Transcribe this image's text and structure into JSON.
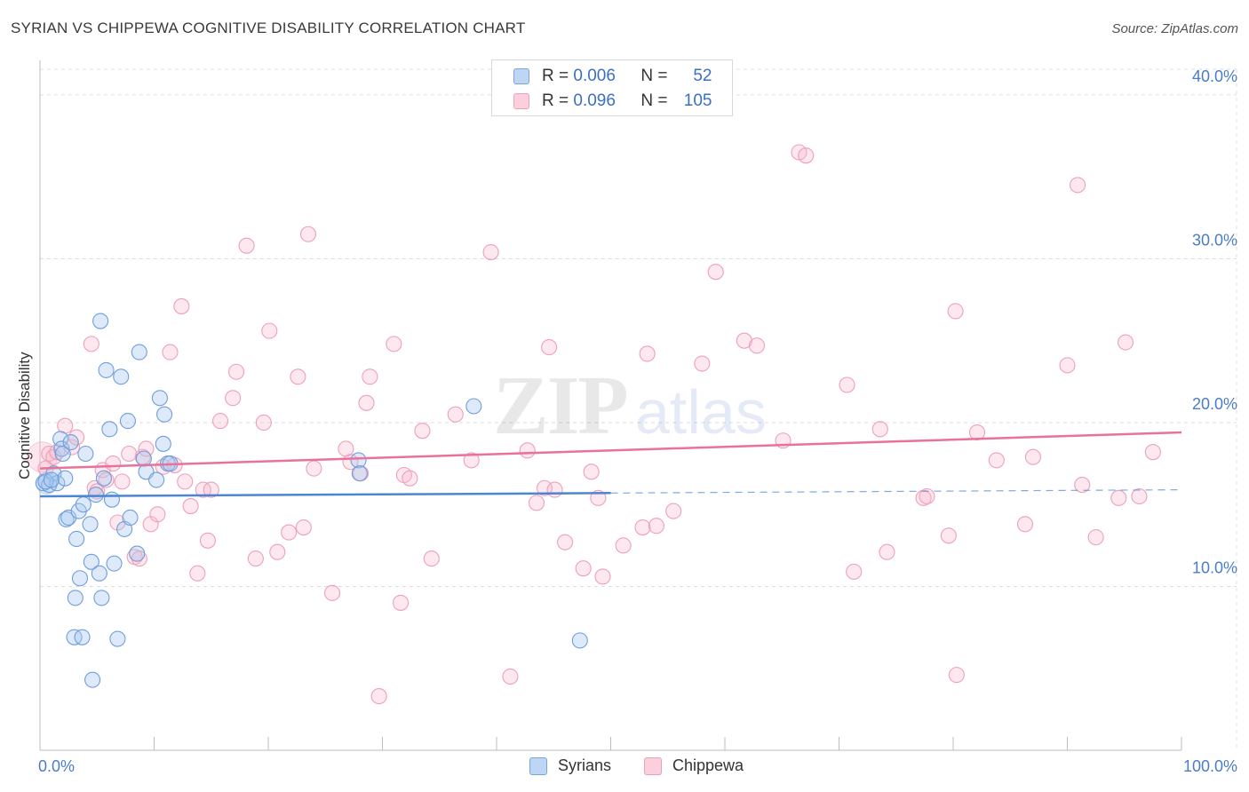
{
  "header": {
    "title": "SYRIAN VS CHIPPEWA COGNITIVE DISABILITY CORRELATION CHART",
    "source": "Source: ZipAtlas.com"
  },
  "legend": {
    "r_label": "R =",
    "n_label": "N =",
    "rows": [
      {
        "r": "0.006",
        "n": "52",
        "color": "#a8c8f0"
      },
      {
        "r": "0.096",
        "n": "105",
        "color": "#f8b8cc"
      }
    ]
  },
  "bottom_legend": [
    {
      "label": "Syrians",
      "color": "#a8c8f0"
    },
    {
      "label": "Chippewa",
      "color": "#f8b8cc"
    }
  ],
  "chart_data": {
    "type": "scatter",
    "title": "SYRIAN VS CHIPPEWA COGNITIVE DISABILITY CORRELATION CHART",
    "xlabel": "",
    "ylabel": "Cognitive Disability",
    "xlim": [
      0,
      100
    ],
    "ylim": [
      0,
      42
    ],
    "x_tick_labels": [
      "0.0%",
      "100.0%"
    ],
    "y_ticks": [
      10,
      20,
      30,
      40
    ],
    "y_tick_labels": [
      "10.0%",
      "20.0%",
      "30.0%",
      "40.0%"
    ],
    "grid": true,
    "watermark": "ZIPatlas",
    "colors": {
      "syrians": "#4a86d4",
      "chippewa": "#e8729a",
      "tick_label": "#4a7cc8"
    },
    "series": [
      {
        "name": "Syrians",
        "R": 0.006,
        "N": 52,
        "trend": {
          "x0": 0,
          "y0": 15.5,
          "x1": 50,
          "y1": 15.7,
          "dash_to": 100,
          "dash_y": 15.9
        },
        "points": [
          [
            0.3,
            16.3
          ],
          [
            0.8,
            16.2
          ],
          [
            1.2,
            16.9
          ],
          [
            1.5,
            16.3
          ],
          [
            1.8,
            19.0
          ],
          [
            1.9,
            18.4
          ],
          [
            2.0,
            18.1
          ],
          [
            2.2,
            16.6
          ],
          [
            2.3,
            14.1
          ],
          [
            2.5,
            14.2
          ],
          [
            2.7,
            18.8
          ],
          [
            3.0,
            6.9
          ],
          [
            3.1,
            9.3
          ],
          [
            3.2,
            12.9
          ],
          [
            3.4,
            14.6
          ],
          [
            3.5,
            10.5
          ],
          [
            3.7,
            6.9
          ],
          [
            3.8,
            15.0
          ],
          [
            4.0,
            18.1
          ],
          [
            4.4,
            13.8
          ],
          [
            4.5,
            11.5
          ],
          [
            4.6,
            4.3
          ],
          [
            4.9,
            15.6
          ],
          [
            5.2,
            10.8
          ],
          [
            5.3,
            26.2
          ],
          [
            5.4,
            9.3
          ],
          [
            5.6,
            16.6
          ],
          [
            5.8,
            23.2
          ],
          [
            6.1,
            19.6
          ],
          [
            6.3,
            15.3
          ],
          [
            6.5,
            11.4
          ],
          [
            6.8,
            6.8
          ],
          [
            7.1,
            22.8
          ],
          [
            7.4,
            13.5
          ],
          [
            7.7,
            20.1
          ],
          [
            7.9,
            14.2
          ],
          [
            8.5,
            12.0
          ],
          [
            8.7,
            24.3
          ],
          [
            9.1,
            17.8
          ],
          [
            9.3,
            17.0
          ],
          [
            10.2,
            16.5
          ],
          [
            10.5,
            21.5
          ],
          [
            10.8,
            18.7
          ],
          [
            10.9,
            20.5
          ],
          [
            11.2,
            17.5
          ],
          [
            11.4,
            17.5
          ],
          [
            27.9,
            17.7
          ],
          [
            28.0,
            16.9
          ],
          [
            38.0,
            21.0
          ],
          [
            47.3,
            6.7
          ],
          [
            0.5,
            16.4
          ],
          [
            1.0,
            16.5
          ]
        ]
      },
      {
        "name": "Chippewa",
        "R": 0.096,
        "N": 105,
        "trend": {
          "x0": 0,
          "y0": 17.2,
          "x1": 100,
          "y1": 19.4
        },
        "points": [
          [
            0.5,
            17.2
          ],
          [
            0.8,
            18.1
          ],
          [
            1.2,
            17.9
          ],
          [
            1.5,
            18.2
          ],
          [
            2.2,
            19.8
          ],
          [
            2.8,
            18.5
          ],
          [
            3.2,
            19.1
          ],
          [
            4.5,
            24.8
          ],
          [
            4.8,
            16.0
          ],
          [
            5.0,
            15.8
          ],
          [
            5.5,
            17.1
          ],
          [
            5.8,
            16.5
          ],
          [
            6.4,
            17.5
          ],
          [
            6.8,
            13.9
          ],
          [
            7.2,
            16.4
          ],
          [
            7.8,
            18.1
          ],
          [
            8.3,
            11.8
          ],
          [
            8.7,
            11.7
          ],
          [
            9.0,
            17.9
          ],
          [
            9.3,
            18.4
          ],
          [
            9.7,
            13.8
          ],
          [
            10.3,
            14.4
          ],
          [
            10.8,
            17.3
          ],
          [
            11.4,
            24.3
          ],
          [
            11.8,
            17.4
          ],
          [
            12.4,
            27.1
          ],
          [
            12.7,
            16.4
          ],
          [
            13.2,
            14.9
          ],
          [
            13.8,
            10.8
          ],
          [
            14.3,
            15.9
          ],
          [
            14.7,
            12.8
          ],
          [
            15.0,
            15.9
          ],
          [
            15.8,
            20.1
          ],
          [
            16.9,
            21.5
          ],
          [
            17.2,
            23.1
          ],
          [
            18.1,
            30.8
          ],
          [
            18.9,
            11.7
          ],
          [
            19.6,
            20.0
          ],
          [
            20.1,
            25.6
          ],
          [
            20.8,
            12.1
          ],
          [
            21.8,
            13.3
          ],
          [
            22.6,
            22.8
          ],
          [
            23.1,
            13.6
          ],
          [
            23.5,
            31.5
          ],
          [
            24.0,
            17.2
          ],
          [
            25.6,
            9.6
          ],
          [
            26.8,
            18.4
          ],
          [
            27.2,
            17.6
          ],
          [
            28.1,
            16.9
          ],
          [
            28.6,
            21.2
          ],
          [
            28.9,
            22.8
          ],
          [
            29.7,
            3.3
          ],
          [
            31.0,
            24.8
          ],
          [
            31.6,
            9.0
          ],
          [
            31.9,
            16.8
          ],
          [
            32.4,
            16.6
          ],
          [
            33.5,
            19.5
          ],
          [
            34.3,
            11.7
          ],
          [
            36.4,
            20.5
          ],
          [
            37.8,
            17.7
          ],
          [
            39.5,
            30.4
          ],
          [
            41.2,
            4.5
          ],
          [
            42.7,
            18.3
          ],
          [
            43.5,
            15.1
          ],
          [
            44.2,
            16.0
          ],
          [
            44.6,
            24.6
          ],
          [
            45.1,
            15.9
          ],
          [
            46.0,
            12.7
          ],
          [
            47.6,
            11.1
          ],
          [
            48.3,
            17.0
          ],
          [
            48.9,
            15.4
          ],
          [
            49.3,
            10.6
          ],
          [
            51.1,
            12.5
          ],
          [
            52.8,
            13.6
          ],
          [
            53.2,
            24.2
          ],
          [
            54.0,
            13.7
          ],
          [
            55.5,
            14.6
          ],
          [
            58.0,
            23.6
          ],
          [
            59.2,
            29.2
          ],
          [
            61.7,
            25.0
          ],
          [
            62.8,
            24.7
          ],
          [
            65.1,
            18.9
          ],
          [
            66.5,
            36.5
          ],
          [
            67.1,
            36.3
          ],
          [
            70.7,
            22.3
          ],
          [
            71.3,
            10.9
          ],
          [
            73.6,
            19.6
          ],
          [
            74.2,
            12.1
          ],
          [
            77.4,
            15.4
          ],
          [
            77.7,
            15.5
          ],
          [
            79.6,
            13.1
          ],
          [
            80.2,
            26.8
          ],
          [
            80.3,
            4.6
          ],
          [
            82.1,
            19.4
          ],
          [
            83.8,
            17.7
          ],
          [
            86.3,
            13.8
          ],
          [
            87.0,
            17.9
          ],
          [
            90.0,
            23.5
          ],
          [
            90.9,
            34.5
          ],
          [
            91.3,
            16.2
          ],
          [
            92.5,
            13.0
          ],
          [
            94.5,
            15.4
          ],
          [
            95.1,
            24.9
          ],
          [
            96.3,
            15.5
          ],
          [
            97.5,
            18.2
          ]
        ]
      }
    ]
  }
}
